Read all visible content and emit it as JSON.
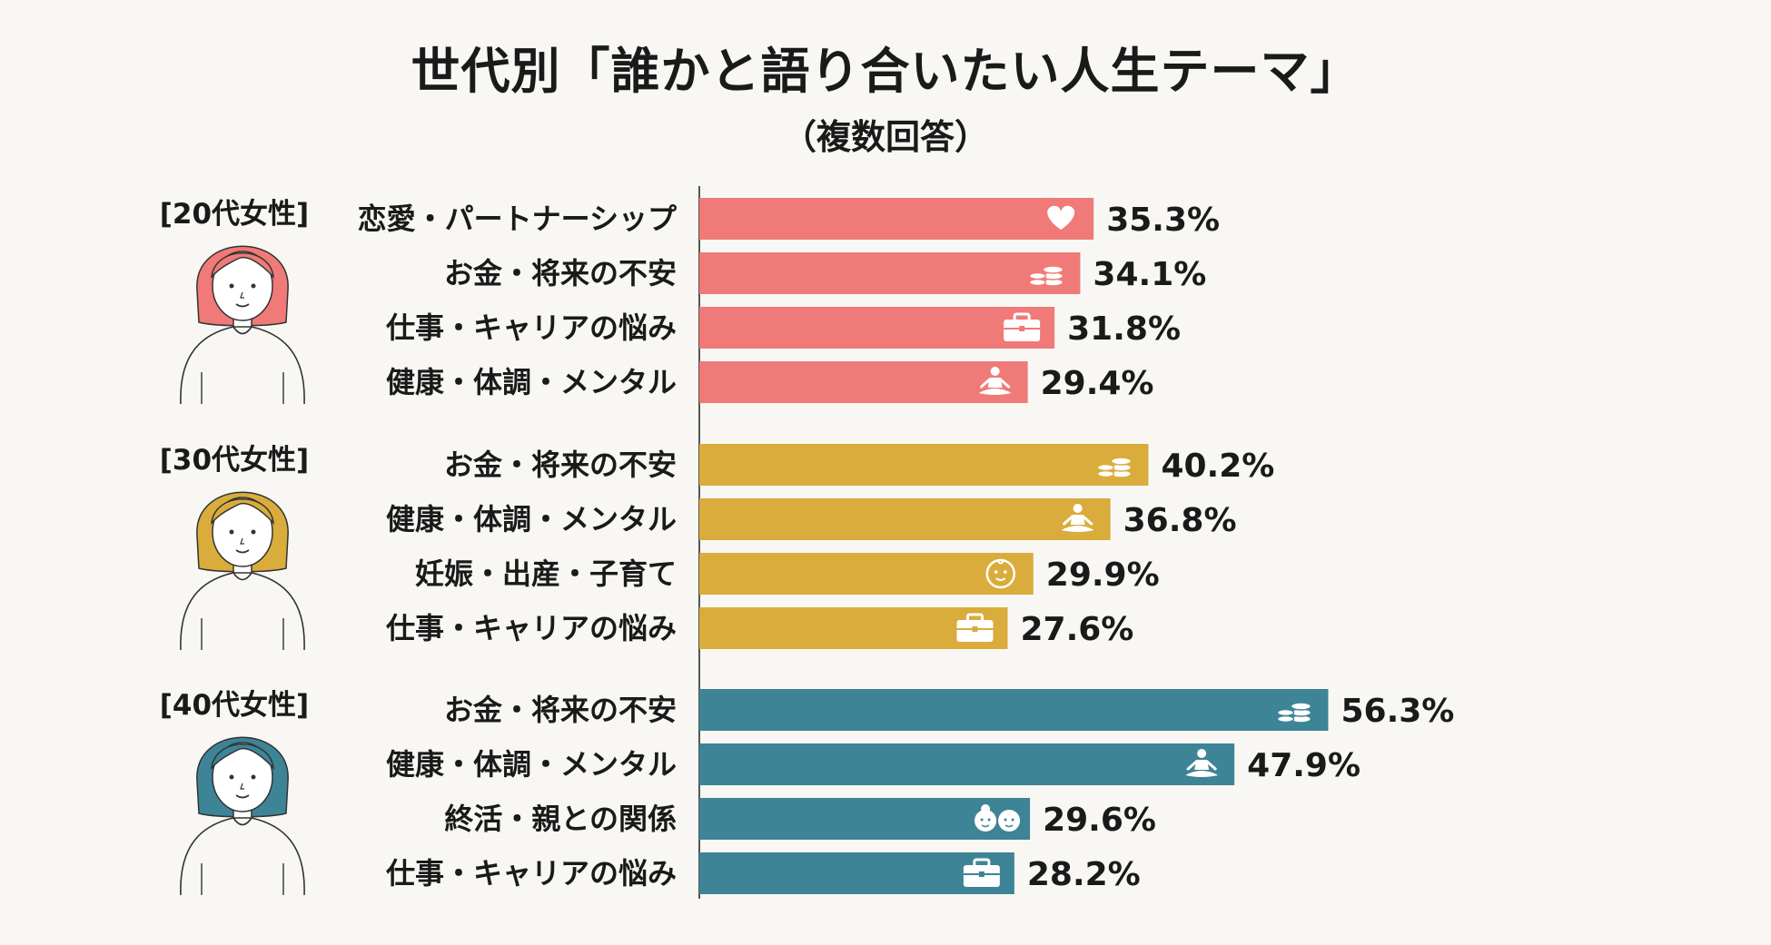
{
  "colors": {
    "g20": "#ef7a77",
    "g30": "#d9ac3b",
    "g40": "#3d8496",
    "axis": "#555555",
    "text": "#1a1a1a",
    "bg": "#f8f7f3"
  },
  "chart_data": {
    "type": "bar",
    "title": "世代別「誰かと語り合いたい人生テーマ」",
    "subtitle": "（複数回答）",
    "unit": "%",
    "groups": [
      {
        "name": "[20代女性]",
        "color": "#ef7a77",
        "avatar": "woman-20s-avatar",
        "items": [
          {
            "label": "恋愛・パートナーシップ",
            "value": 35.3,
            "display": "35.3%",
            "icon": "heart"
          },
          {
            "label": "お金・将来の不安",
            "value": 34.1,
            "display": "34.1%",
            "icon": "coins"
          },
          {
            "label": "仕事・キャリアの悩み",
            "value": 31.8,
            "display": "31.8%",
            "icon": "briefcase"
          },
          {
            "label": "健康・体調・メンタル",
            "value": 29.4,
            "display": "29.4%",
            "icon": "meditation"
          }
        ]
      },
      {
        "name": "[30代女性]",
        "color": "#d9ac3b",
        "avatar": "woman-30s-avatar",
        "items": [
          {
            "label": "お金・将来の不安",
            "value": 40.2,
            "display": "40.2%",
            "icon": "coins"
          },
          {
            "label": "健康・体調・メンタル",
            "value": 36.8,
            "display": "36.8%",
            "icon": "meditation"
          },
          {
            "label": "妊娠・出産・子育て",
            "value": 29.9,
            "display": "29.9%",
            "icon": "baby"
          },
          {
            "label": "仕事・キャリアの悩み",
            "value": 27.6,
            "display": "27.6%",
            "icon": "briefcase"
          }
        ]
      },
      {
        "name": "[40代女性]",
        "color": "#3d8496",
        "avatar": "woman-40s-avatar",
        "items": [
          {
            "label": "お金・将来の不安",
            "value": 56.3,
            "display": "56.3%",
            "icon": "coins"
          },
          {
            "label": "健康・体調・メンタル",
            "value": 47.9,
            "display": "47.9%",
            "icon": "meditation"
          },
          {
            "label": "終活・親との関係",
            "value": 29.6,
            "display": "29.6%",
            "icon": "elderly-couple"
          },
          {
            "label": "仕事・キャリアの悩み",
            "value": 28.2,
            "display": "28.2%",
            "icon": "briefcase"
          }
        ]
      }
    ]
  }
}
